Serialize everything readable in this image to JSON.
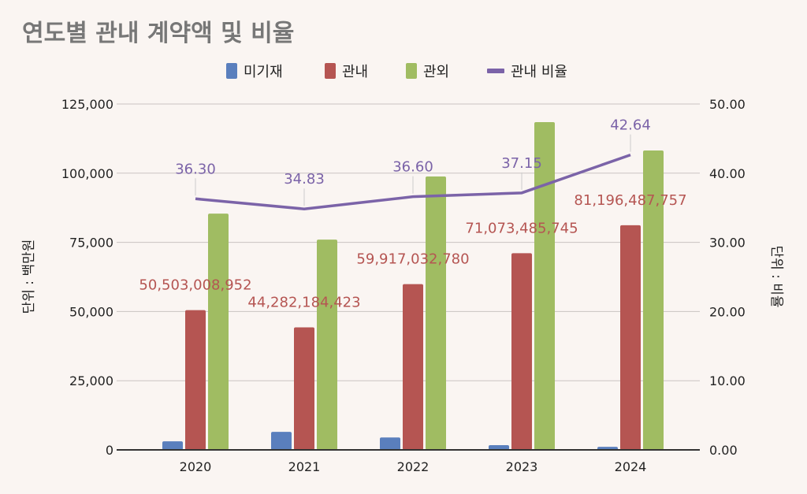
{
  "chart_data": {
    "type": "bar",
    "title": "연도별 관내 계약액 및 비율",
    "categories": [
      "2020",
      "2021",
      "2022",
      "2023",
      "2024"
    ],
    "series": [
      {
        "name": "미기재",
        "type": "bar",
        "axis": "left",
        "color": "#5a7fbd",
        "values": [
          3100,
          6500,
          4500,
          1700,
          1100
        ]
      },
      {
        "name": "관내",
        "type": "bar",
        "axis": "left",
        "color": "#b55552",
        "values": [
          50503,
          44282,
          59917,
          71073,
          81196
        ],
        "labels": [
          "50,503,008,952",
          "44,282,184,423",
          "59,917,032,780",
          "71,073,485,745",
          "81,196,487,757"
        ]
      },
      {
        "name": "관외",
        "type": "bar",
        "axis": "left",
        "color": "#a0bc62",
        "values": [
          85400,
          76000,
          98800,
          118450,
          108200
        ]
      },
      {
        "name": "관내 비율",
        "type": "line",
        "axis": "right",
        "color": "#7b63a8",
        "values": [
          36.3,
          34.83,
          36.6,
          37.15,
          42.64
        ],
        "labels": [
          "36.30",
          "34.83",
          "36.60",
          "37.15",
          "42.64"
        ]
      }
    ],
    "ylabel": "단위 : 백만원",
    "y2label": "단위 : 비율",
    "ylim": [
      0,
      125000
    ],
    "y2lim": [
      0,
      50
    ],
    "yticks": [
      "0",
      "25,000",
      "50,000",
      "75,000",
      "100,000",
      "125,000"
    ],
    "y2ticks": [
      "0.00",
      "10.00",
      "20.00",
      "30.00",
      "40.00",
      "50.00"
    ],
    "grid": true,
    "legend": "top"
  }
}
